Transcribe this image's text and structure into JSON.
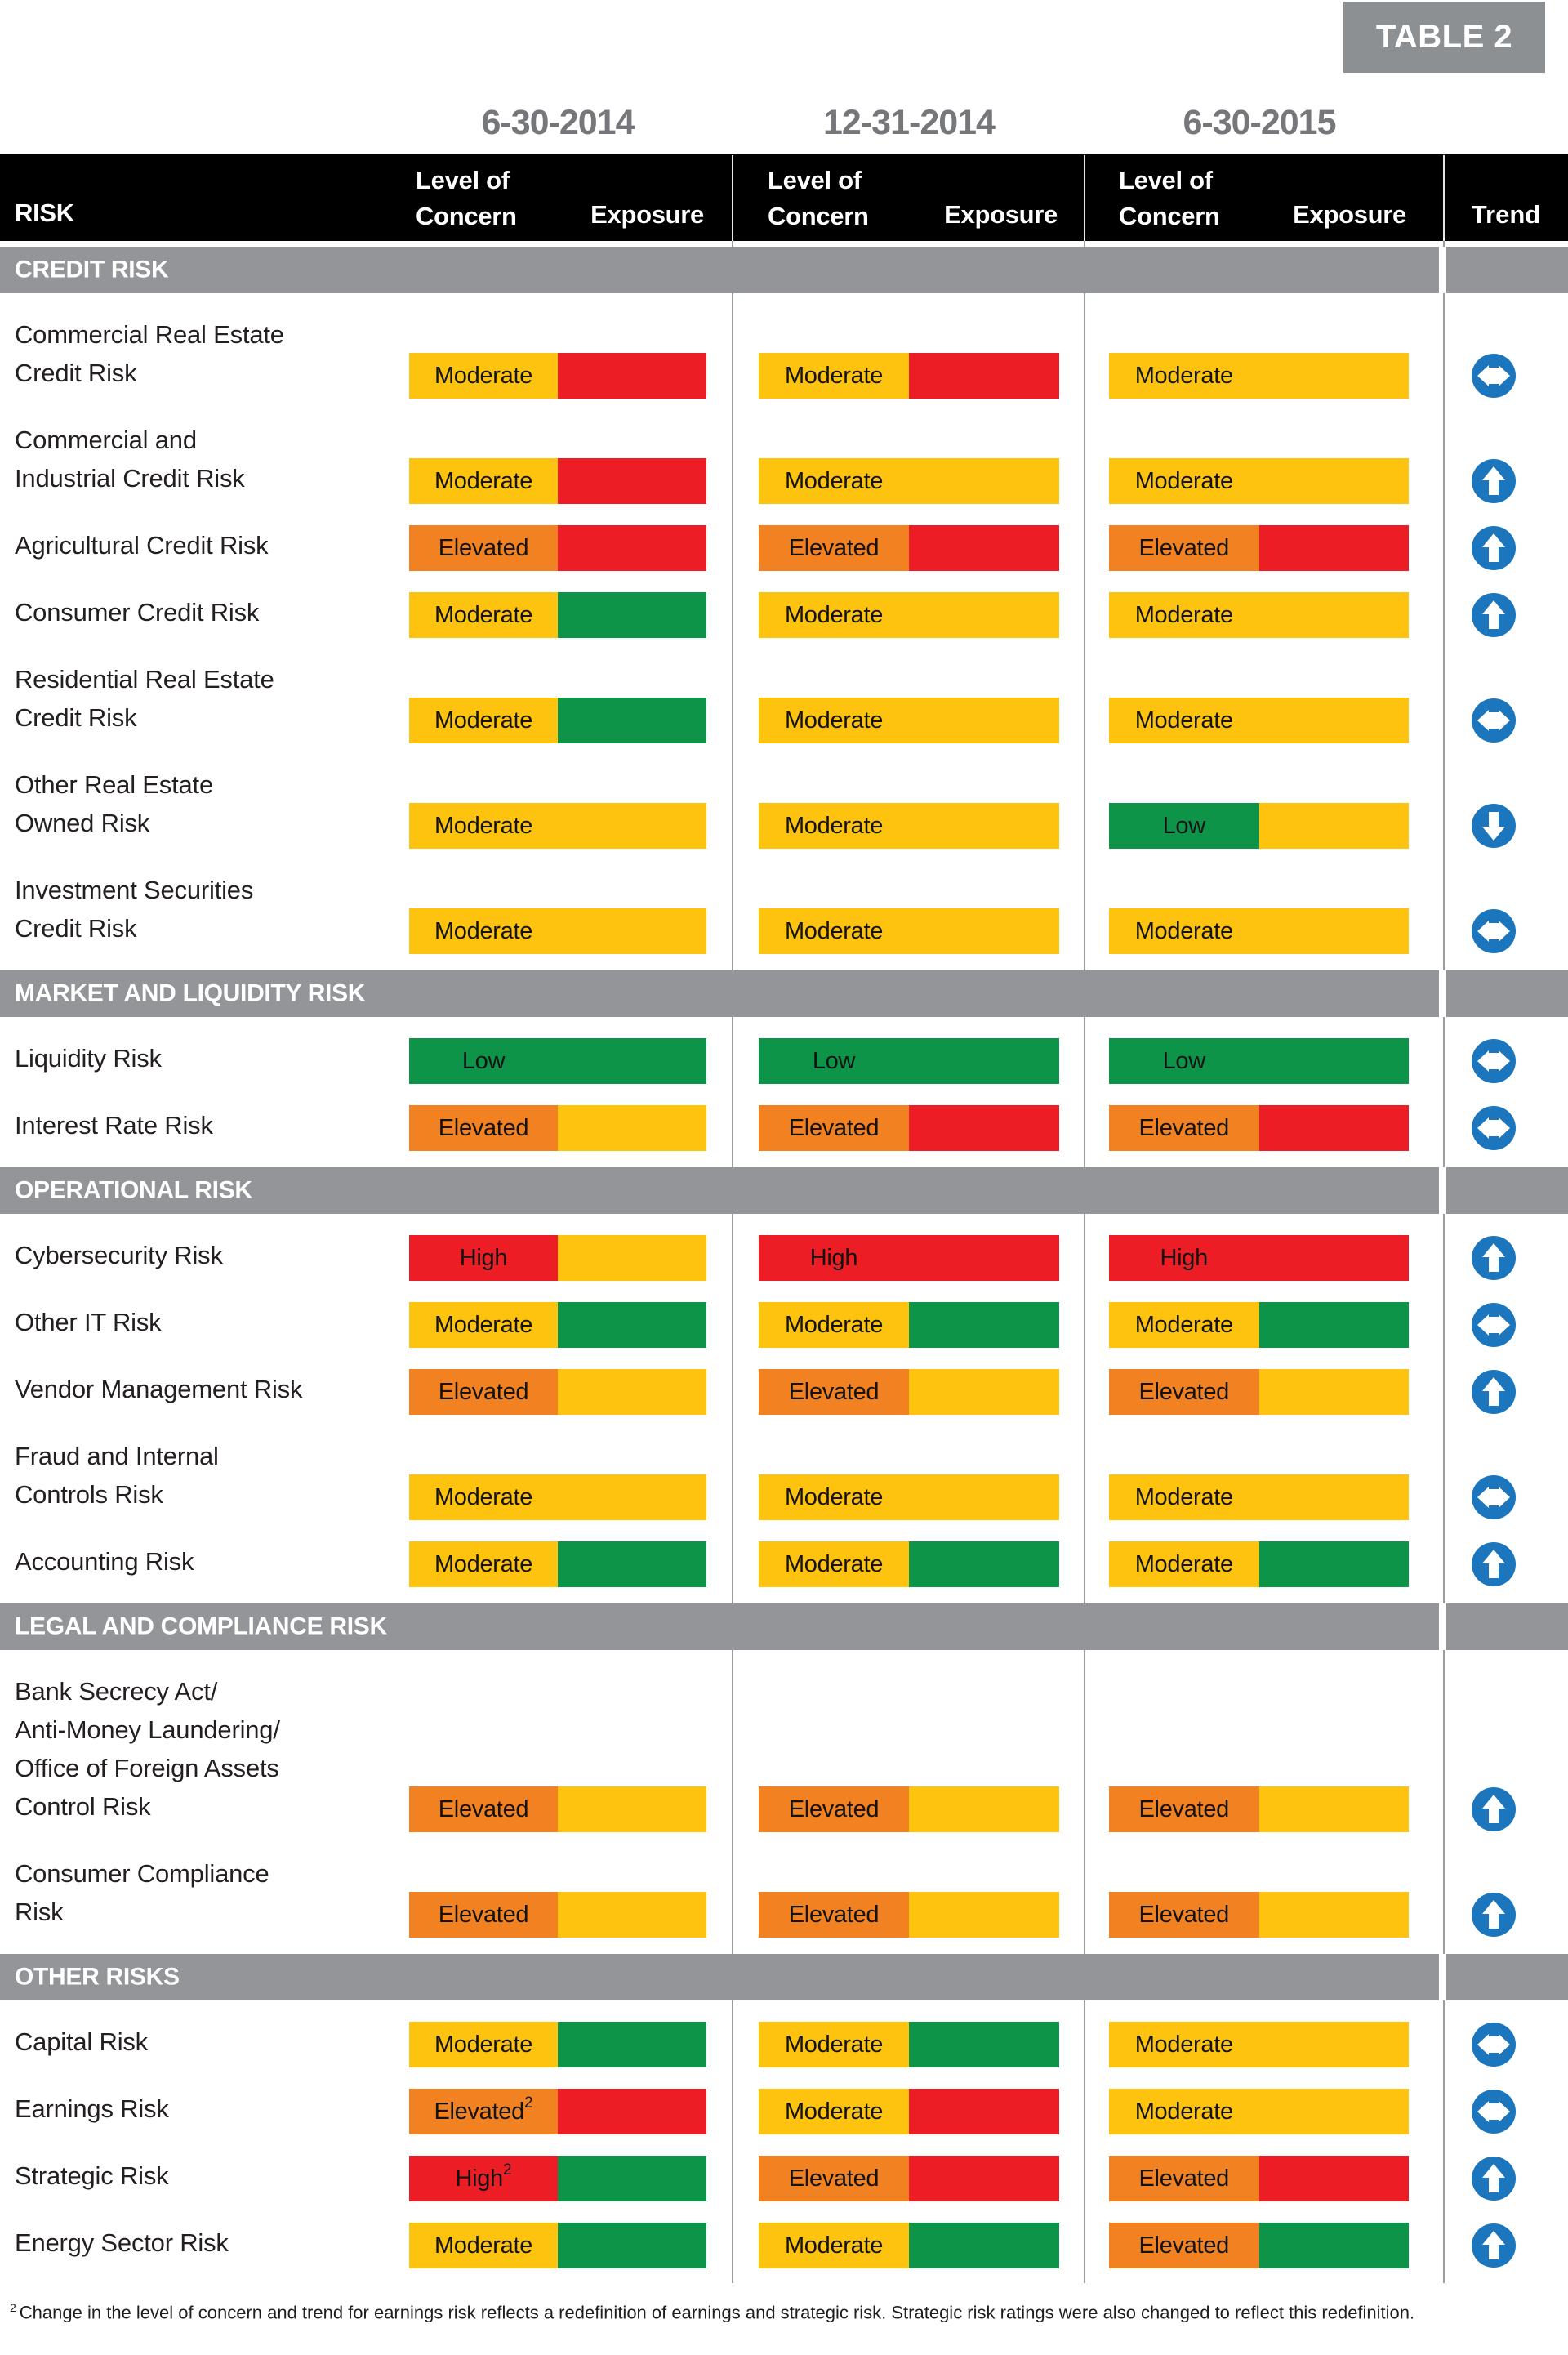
{
  "badge": "TABLE 2",
  "dates": [
    "6-30-2014",
    "12-31-2014",
    "6-30-2015"
  ],
  "header": {
    "risk_label": "RISK",
    "concern_line1": "Level of",
    "concern_line2": "Concern",
    "exposure_label": "Exposure",
    "trend_label": "Trend"
  },
  "colors": {
    "low_green": "#0D9448",
    "moderate_yellow": "#FEC30E",
    "elevated_orange": "#F18121",
    "high_red": "#EC1D24",
    "trend_blue": "#1B76BD",
    "section_band_gray": "#939598",
    "header_black": "#000000",
    "date_gray": "#76777A",
    "badge_gray": "#8D9093"
  },
  "sections": [
    {
      "title": "CREDIT RISK",
      "rows": [
        {
          "name_lines": [
            "Commercial Real Estate",
            "Credit Risk"
          ],
          "cells": [
            {
              "label": "Moderate",
              "concern": "yellow",
              "exposure": "red"
            },
            {
              "label": "Moderate",
              "concern": "yellow",
              "exposure": "red"
            },
            {
              "label": "Moderate",
              "concern": "yellow",
              "exposure": "yellow"
            }
          ],
          "trend": "stable"
        },
        {
          "name_lines": [
            "Commercial and",
            "Industrial Credit Risk"
          ],
          "cells": [
            {
              "label": "Moderate",
              "concern": "yellow",
              "exposure": "red"
            },
            {
              "label": "Moderate",
              "concern": "yellow",
              "exposure": "yellow"
            },
            {
              "label": "Moderate",
              "concern": "yellow",
              "exposure": "yellow"
            }
          ],
          "trend": "up"
        },
        {
          "name_lines": [
            "Agricultural Credit Risk"
          ],
          "cells": [
            {
              "label": "Elevated",
              "concern": "orange",
              "exposure": "red"
            },
            {
              "label": "Elevated",
              "concern": "orange",
              "exposure": "red"
            },
            {
              "label": "Elevated",
              "concern": "orange",
              "exposure": "red"
            }
          ],
          "trend": "up"
        },
        {
          "name_lines": [
            "Consumer Credit Risk"
          ],
          "cells": [
            {
              "label": "Moderate",
              "concern": "yellow",
              "exposure": "green"
            },
            {
              "label": "Moderate",
              "concern": "yellow",
              "exposure": "yellow"
            },
            {
              "label": "Moderate",
              "concern": "yellow",
              "exposure": "yellow"
            }
          ],
          "trend": "up"
        },
        {
          "name_lines": [
            "Residential Real Estate",
            "Credit Risk"
          ],
          "cells": [
            {
              "label": "Moderate",
              "concern": "yellow",
              "exposure": "green"
            },
            {
              "label": "Moderate",
              "concern": "yellow",
              "exposure": "yellow"
            },
            {
              "label": "Moderate",
              "concern": "yellow",
              "exposure": "yellow"
            }
          ],
          "trend": "stable"
        },
        {
          "name_lines": [
            "Other Real Estate",
            "Owned Risk"
          ],
          "cells": [
            {
              "label": "Moderate",
              "concern": "yellow",
              "exposure": "yellow"
            },
            {
              "label": "Moderate",
              "concern": "yellow",
              "exposure": "yellow"
            },
            {
              "label": "Low",
              "concern": "green",
              "exposure": "yellow"
            }
          ],
          "trend": "down"
        },
        {
          "name_lines": [
            "Investment Securities",
            "Credit Risk"
          ],
          "cells": [
            {
              "label": "Moderate",
              "concern": "yellow",
              "exposure": "yellow"
            },
            {
              "label": "Moderate",
              "concern": "yellow",
              "exposure": "yellow"
            },
            {
              "label": "Moderate",
              "concern": "yellow",
              "exposure": "yellow"
            }
          ],
          "trend": "stable"
        }
      ]
    },
    {
      "title": "MARKET AND LIQUIDITY RISK",
      "rows": [
        {
          "name_lines": [
            "Liquidity Risk"
          ],
          "cells": [
            {
              "label": "Low",
              "concern": "green",
              "exposure": "green"
            },
            {
              "label": "Low",
              "concern": "green",
              "exposure": "green"
            },
            {
              "label": "Low",
              "concern": "green",
              "exposure": "green"
            }
          ],
          "trend": "stable"
        },
        {
          "name_lines": [
            "Interest Rate Risk"
          ],
          "cells": [
            {
              "label": "Elevated",
              "concern": "orange",
              "exposure": "yellow"
            },
            {
              "label": "Elevated",
              "concern": "orange",
              "exposure": "red"
            },
            {
              "label": "Elevated",
              "concern": "orange",
              "exposure": "red"
            }
          ],
          "trend": "stable"
        }
      ]
    },
    {
      "title": "OPERATIONAL RISK",
      "rows": [
        {
          "name_lines": [
            "Cybersecurity Risk"
          ],
          "cells": [
            {
              "label": "High",
              "concern": "red",
              "exposure": "yellow"
            },
            {
              "label": "High",
              "concern": "red",
              "exposure": "red"
            },
            {
              "label": "High",
              "concern": "red",
              "exposure": "red"
            }
          ],
          "trend": "up"
        },
        {
          "name_lines": [
            "Other IT Risk"
          ],
          "cells": [
            {
              "label": "Moderate",
              "concern": "yellow",
              "exposure": "green"
            },
            {
              "label": "Moderate",
              "concern": "yellow",
              "exposure": "green"
            },
            {
              "label": "Moderate",
              "concern": "yellow",
              "exposure": "green"
            }
          ],
          "trend": "stable"
        },
        {
          "name_lines": [
            "Vendor Management Risk"
          ],
          "cells": [
            {
              "label": "Elevated",
              "concern": "orange",
              "exposure": "yellow"
            },
            {
              "label": "Elevated",
              "concern": "orange",
              "exposure": "yellow"
            },
            {
              "label": "Elevated",
              "concern": "orange",
              "exposure": "yellow"
            }
          ],
          "trend": "up"
        },
        {
          "name_lines": [
            "Fraud and Internal",
            "Controls Risk"
          ],
          "cells": [
            {
              "label": "Moderate",
              "concern": "yellow",
              "exposure": "yellow"
            },
            {
              "label": "Moderate",
              "concern": "yellow",
              "exposure": "yellow"
            },
            {
              "label": "Moderate",
              "concern": "yellow",
              "exposure": "yellow"
            }
          ],
          "trend": "stable"
        },
        {
          "name_lines": [
            "Accounting Risk"
          ],
          "cells": [
            {
              "label": "Moderate",
              "concern": "yellow",
              "exposure": "green"
            },
            {
              "label": "Moderate",
              "concern": "yellow",
              "exposure": "green"
            },
            {
              "label": "Moderate",
              "concern": "yellow",
              "exposure": "green"
            }
          ],
          "trend": "up"
        }
      ]
    },
    {
      "title": "LEGAL AND COMPLIANCE RISK",
      "rows": [
        {
          "name_lines": [
            "Bank Secrecy Act/",
            "Anti-Money Laundering/",
            "Office of Foreign Assets",
            "Control Risk"
          ],
          "cells": [
            {
              "label": "Elevated",
              "concern": "orange",
              "exposure": "yellow"
            },
            {
              "label": "Elevated",
              "concern": "orange",
              "exposure": "yellow"
            },
            {
              "label": "Elevated",
              "concern": "orange",
              "exposure": "yellow"
            }
          ],
          "trend": "up"
        },
        {
          "name_lines": [
            "Consumer Compliance",
            "Risk"
          ],
          "cells": [
            {
              "label": "Elevated",
              "concern": "orange",
              "exposure": "yellow"
            },
            {
              "label": "Elevated",
              "concern": "orange",
              "exposure": "yellow"
            },
            {
              "label": "Elevated",
              "concern": "orange",
              "exposure": "yellow"
            }
          ],
          "trend": "up"
        }
      ]
    },
    {
      "title": "OTHER RISKS",
      "rows": [
        {
          "name_lines": [
            "Capital Risk"
          ],
          "cells": [
            {
              "label": "Moderate",
              "concern": "yellow",
              "exposure": "green"
            },
            {
              "label": "Moderate",
              "concern": "yellow",
              "exposure": "green"
            },
            {
              "label": "Moderate",
              "concern": "yellow",
              "exposure": "yellow"
            }
          ],
          "trend": "stable"
        },
        {
          "name_lines": [
            "Earnings Risk"
          ],
          "cells": [
            {
              "label": "Elevated",
              "sup": "2",
              "concern": "orange",
              "exposure": "red"
            },
            {
              "label": "Moderate",
              "concern": "yellow",
              "exposure": "red"
            },
            {
              "label": "Moderate",
              "concern": "yellow",
              "exposure": "yellow"
            }
          ],
          "trend": "stable"
        },
        {
          "name_lines": [
            "Strategic Risk"
          ],
          "cells": [
            {
              "label": "High",
              "sup": "2",
              "concern": "red",
              "exposure": "green"
            },
            {
              "label": "Elevated",
              "concern": "orange",
              "exposure": "red"
            },
            {
              "label": "Elevated",
              "concern": "orange",
              "exposure": "red"
            }
          ],
          "trend": "up"
        },
        {
          "name_lines": [
            "Energy Sector Risk"
          ],
          "cells": [
            {
              "label": "Moderate",
              "concern": "yellow",
              "exposure": "green"
            },
            {
              "label": "Moderate",
              "concern": "yellow",
              "exposure": "green"
            },
            {
              "label": "Elevated",
              "concern": "orange",
              "exposure": "green"
            }
          ],
          "trend": "up"
        }
      ]
    }
  ],
  "footnote": {
    "sup": "2",
    "text": "Change in the level of concern and trend for earnings risk reflects a redefinition of earnings and strategic risk. Strategic risk ratings were also changed to reflect this redefinition."
  },
  "chart_data": {
    "type": "table",
    "title": "TABLE 2",
    "columns": [
      "Risk",
      "6-30-2014 Level of Concern",
      "6-30-2014 Exposure",
      "12-31-2014 Level of Concern",
      "12-31-2014 Exposure",
      "6-30-2015 Level of Concern",
      "6-30-2015 Exposure",
      "Trend"
    ],
    "rows": [
      [
        "Commercial Real Estate Credit Risk",
        "Moderate",
        "red",
        "Moderate",
        "red",
        "Moderate",
        "yellow",
        "stable"
      ],
      [
        "Commercial and Industrial Credit Risk",
        "Moderate",
        "red",
        "Moderate",
        "yellow",
        "Moderate",
        "yellow",
        "up"
      ],
      [
        "Agricultural Credit Risk",
        "Elevated",
        "red",
        "Elevated",
        "red",
        "Elevated",
        "red",
        "up"
      ],
      [
        "Consumer Credit Risk",
        "Moderate",
        "green",
        "Moderate",
        "yellow",
        "Moderate",
        "yellow",
        "up"
      ],
      [
        "Residential Real Estate Credit Risk",
        "Moderate",
        "green",
        "Moderate",
        "yellow",
        "Moderate",
        "yellow",
        "stable"
      ],
      [
        "Other Real Estate Owned Risk",
        "Moderate",
        "yellow",
        "Moderate",
        "yellow",
        "Low",
        "yellow",
        "down"
      ],
      [
        "Investment Securities Credit Risk",
        "Moderate",
        "yellow",
        "Moderate",
        "yellow",
        "Moderate",
        "yellow",
        "stable"
      ],
      [
        "Liquidity Risk",
        "Low",
        "green",
        "Low",
        "green",
        "Low",
        "green",
        "stable"
      ],
      [
        "Interest Rate Risk",
        "Elevated",
        "yellow",
        "Elevated",
        "red",
        "Elevated",
        "red",
        "stable"
      ],
      [
        "Cybersecurity Risk",
        "High",
        "yellow",
        "High",
        "red",
        "High",
        "red",
        "up"
      ],
      [
        "Other IT Risk",
        "Moderate",
        "green",
        "Moderate",
        "green",
        "Moderate",
        "green",
        "stable"
      ],
      [
        "Vendor Management Risk",
        "Elevated",
        "yellow",
        "Elevated",
        "yellow",
        "Elevated",
        "yellow",
        "up"
      ],
      [
        "Fraud and Internal Controls Risk",
        "Moderate",
        "yellow",
        "Moderate",
        "yellow",
        "Moderate",
        "yellow",
        "stable"
      ],
      [
        "Accounting Risk",
        "Moderate",
        "green",
        "Moderate",
        "green",
        "Moderate",
        "green",
        "up"
      ],
      [
        "Bank Secrecy Act/Anti-Money Laundering/Office of Foreign Assets Control Risk",
        "Elevated",
        "yellow",
        "Elevated",
        "yellow",
        "Elevated",
        "yellow",
        "up"
      ],
      [
        "Consumer Compliance Risk",
        "Elevated",
        "yellow",
        "Elevated",
        "yellow",
        "Elevated",
        "yellow",
        "up"
      ],
      [
        "Capital Risk",
        "Moderate",
        "green",
        "Moderate",
        "green",
        "Moderate",
        "yellow",
        "stable"
      ],
      [
        "Earnings Risk",
        "Elevated(2)",
        "red",
        "Moderate",
        "red",
        "Moderate",
        "yellow",
        "stable"
      ],
      [
        "Strategic Risk",
        "High(2)",
        "green",
        "Elevated",
        "red",
        "Elevated",
        "red",
        "up"
      ],
      [
        "Energy Sector Risk",
        "Moderate",
        "green",
        "Moderate",
        "green",
        "Elevated",
        "green",
        "up"
      ]
    ]
  }
}
